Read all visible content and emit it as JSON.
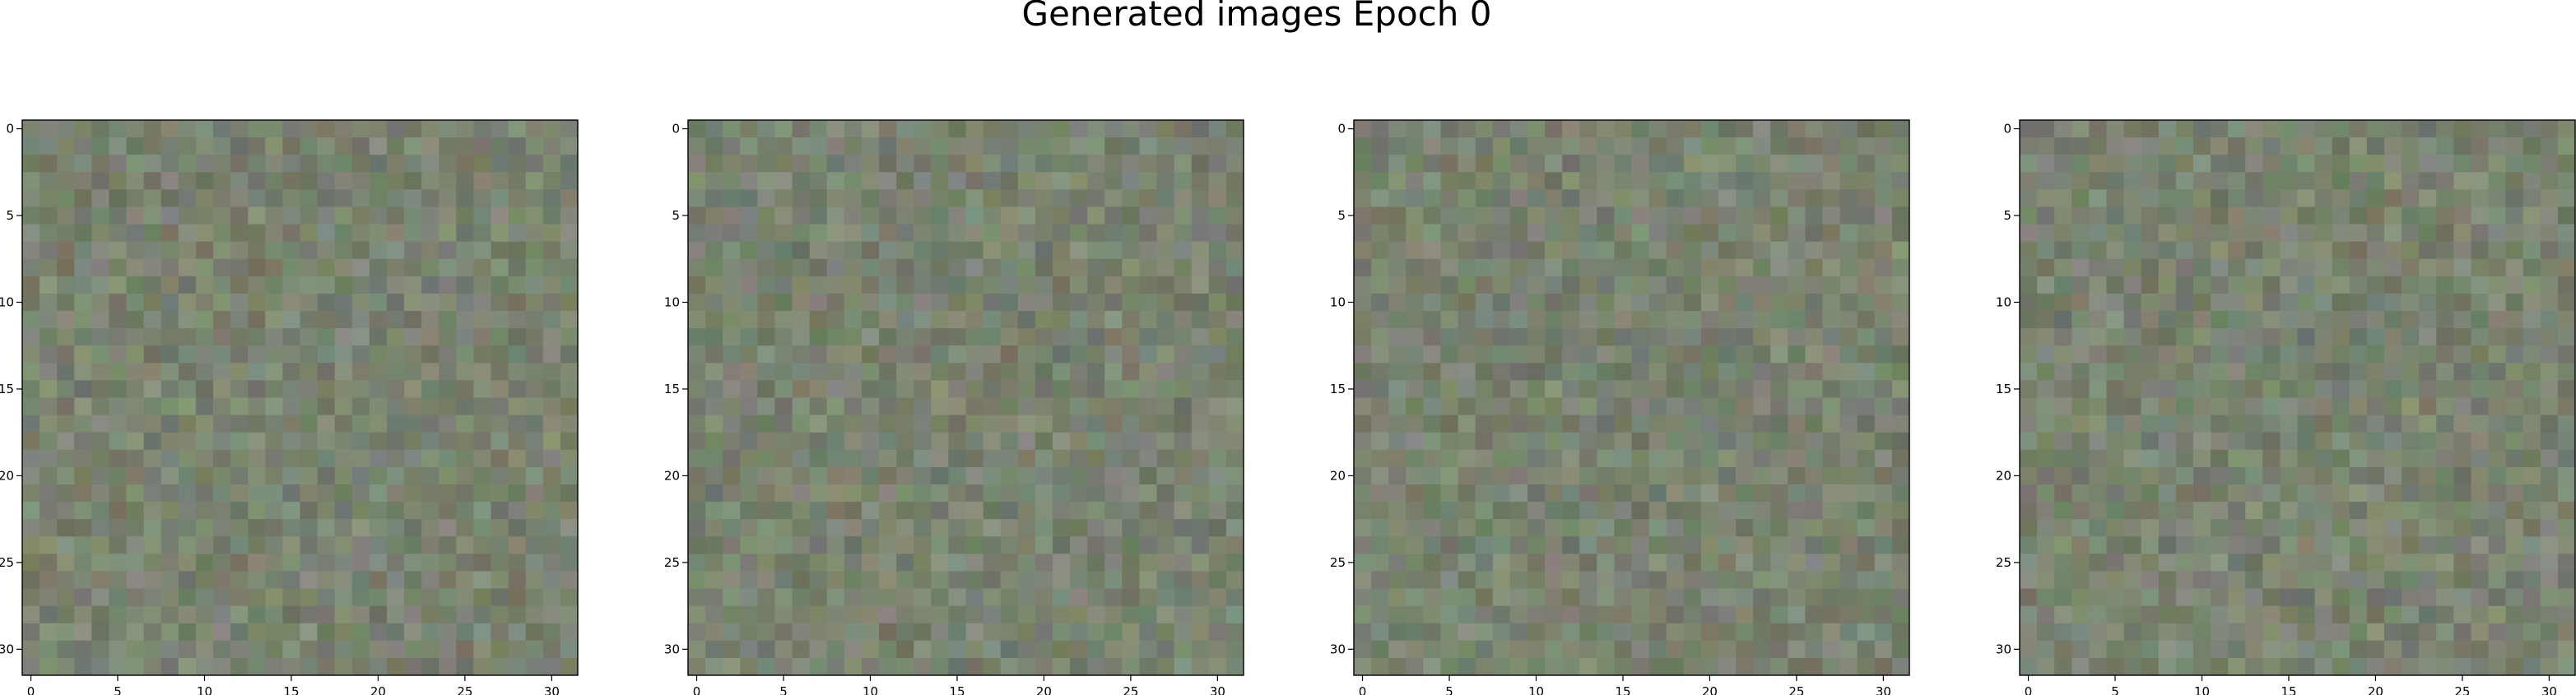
{
  "figure": {
    "title": "Generated images Epoch 0"
  },
  "chart_data": [
    {
      "type": "heatmap",
      "rows": 32,
      "cols": 32,
      "xlim": [
        -0.5,
        31.5
      ],
      "ylim": [
        31.5,
        -0.5
      ],
      "xticks": [
        0,
        5,
        10,
        15,
        20,
        25,
        30
      ],
      "yticks": [
        0,
        5,
        10,
        15,
        20,
        25,
        30
      ],
      "colormap": "rgb noise",
      "base_color": "#7a8070",
      "seed": 11
    },
    {
      "type": "heatmap",
      "rows": 32,
      "cols": 32,
      "xlim": [
        -0.5,
        31.5
      ],
      "ylim": [
        31.5,
        -0.5
      ],
      "xticks": [
        0,
        5,
        10,
        15,
        20,
        25,
        30
      ],
      "yticks": [
        0,
        5,
        10,
        15,
        20,
        25,
        30
      ],
      "colormap": "rgb noise",
      "base_color": "#7a8070",
      "seed": 23
    },
    {
      "type": "heatmap",
      "rows": 32,
      "cols": 32,
      "xlim": [
        -0.5,
        31.5
      ],
      "ylim": [
        31.5,
        -0.5
      ],
      "xticks": [
        0,
        5,
        10,
        15,
        20,
        25,
        30
      ],
      "yticks": [
        0,
        5,
        10,
        15,
        20,
        25,
        30
      ],
      "colormap": "rgb noise",
      "base_color": "#7a8070",
      "seed": 37
    },
    {
      "type": "heatmap",
      "rows": 32,
      "cols": 32,
      "xlim": [
        -0.5,
        31.5
      ],
      "ylim": [
        31.5,
        -0.5
      ],
      "xticks": [
        0,
        5,
        10,
        15,
        20,
        25,
        30
      ],
      "yticks": [
        0,
        5,
        10,
        15,
        20,
        25,
        30
      ],
      "colormap": "rgb noise",
      "base_color": "#7a8070",
      "seed": 53
    }
  ]
}
